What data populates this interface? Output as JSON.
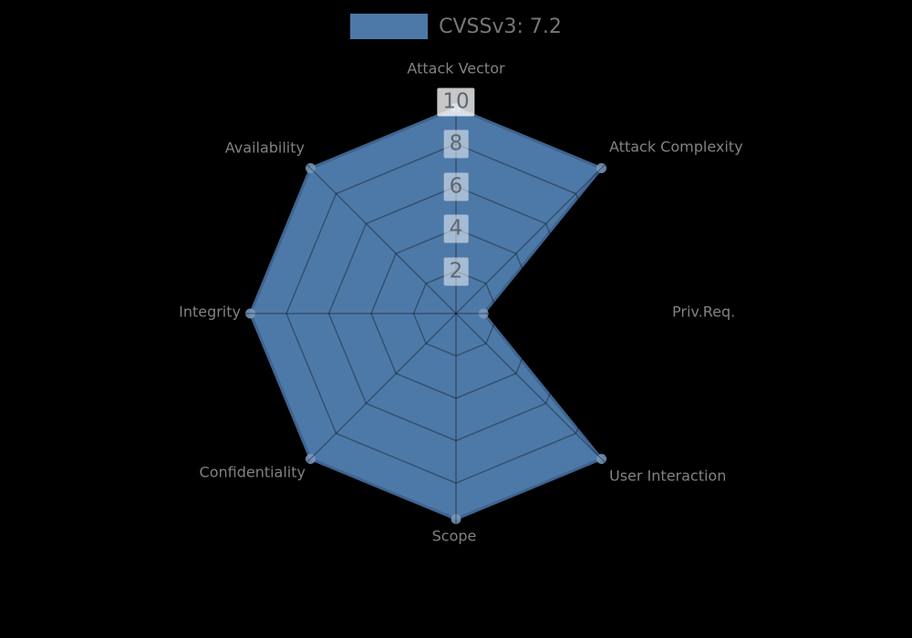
{
  "chart_data": {
    "type": "radar",
    "legend": {
      "label": "CVSSv3: 7.2",
      "position": "top-center"
    },
    "axes": [
      {
        "label": "Attack Vector",
        "value": 9.7
      },
      {
        "label": "Attack Complexity",
        "value": 9.7
      },
      {
        "label": "Priv.Req.",
        "value": 1.3
      },
      {
        "label": "User Interaction",
        "value": 9.7
      },
      {
        "label": "Scope",
        "value": 9.7
      },
      {
        "label": "Confidentiality",
        "value": 9.7
      },
      {
        "label": "Integrity",
        "value": 9.7
      },
      {
        "label": "Availability",
        "value": 9.7
      }
    ],
    "series": [
      {
        "name": "CVSSv3: 7.2",
        "values": [
          9.7,
          9.7,
          1.3,
          9.7,
          9.7,
          9.7,
          9.7,
          9.7
        ]
      }
    ],
    "ticks": [
      2,
      4,
      6,
      8,
      10
    ],
    "range": [
      0,
      10
    ],
    "grid": "octagonal-rings-and-spokes",
    "colors": {
      "background": "#000000",
      "fill": "#4d79a8",
      "edge": "#3f648f",
      "marker": "#7b9bc0",
      "grid_overlay": "rgba(0,0,0,0.33)",
      "axis_label_text": "#828282",
      "tick_text": "#5d6770",
      "tick_box": "rgba(255,255,255,0.5)",
      "legend_text": "#777777"
    }
  }
}
